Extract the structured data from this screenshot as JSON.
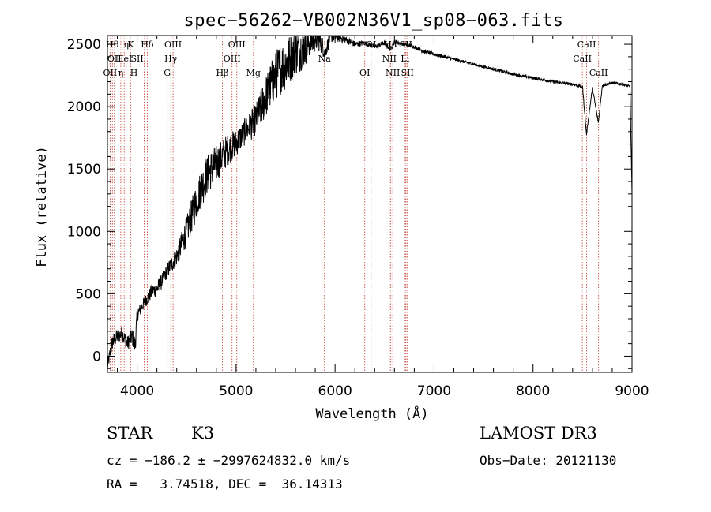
{
  "chart_data": {
    "type": "line",
    "title": "spec−56262−VB002N36V1_sp08−063.fits",
    "xlabel": "Wavelength (Å)",
    "ylabel": "Flux (relative)",
    "xlim": [
      3700,
      9000
    ],
    "ylim": [
      -130,
      2570
    ],
    "x_ticks": [
      4000,
      5000,
      6000,
      7000,
      8000,
      9000
    ],
    "x_tick_labels": [
      "4000",
      "5000",
      "6000",
      "7000",
      "8000",
      "9000"
    ],
    "y_ticks": [
      0,
      500,
      1000,
      1500,
      2000,
      2500
    ],
    "y_tick_labels": [
      "0",
      "500",
      "1000",
      "1500",
      "2000",
      "2500"
    ],
    "spectrum": {
      "x": [
        3700,
        3750,
        3800,
        3850,
        3900,
        3950,
        3980,
        4000,
        4050,
        4100,
        4150,
        4200,
        4250,
        4300,
        4350,
        4400,
        4450,
        4500,
        4550,
        4600,
        4650,
        4700,
        4750,
        4800,
        4850,
        4900,
        4950,
        5000,
        5050,
        5100,
        5150,
        5200,
        5250,
        5300,
        5350,
        5400,
        5450,
        5500,
        5550,
        5600,
        5650,
        5700,
        5750,
        5800,
        5850,
        5900,
        5950,
        6000,
        6100,
        6200,
        6300,
        6400,
        6500,
        6560,
        6600,
        6700,
        6800,
        6900,
        7000,
        7200,
        7400,
        7600,
        7800,
        8000,
        8200,
        8400,
        8500,
        8540,
        8600,
        8660,
        8700,
        8800,
        8900,
        8980,
        9000
      ],
      "flux": [
        -80,
        110,
        160,
        180,
        100,
        160,
        80,
        330,
        400,
        460,
        520,
        540,
        600,
        680,
        740,
        800,
        900,
        1000,
        1120,
        1250,
        1350,
        1440,
        1500,
        1540,
        1590,
        1640,
        1680,
        1710,
        1760,
        1810,
        1850,
        1900,
        1980,
        2080,
        2170,
        2250,
        2310,
        2340,
        2390,
        2430,
        2460,
        2490,
        2520,
        2550,
        2530,
        2430,
        2560,
        2560,
        2540,
        2500,
        2510,
        2480,
        2510,
        2460,
        2520,
        2500,
        2480,
        2440,
        2420,
        2380,
        2340,
        2300,
        2260,
        2230,
        2200,
        2180,
        2160,
        1780,
        2150,
        1870,
        2170,
        2190,
        2180,
        2160,
        1280
      ],
      "noise": [
        50,
        60,
        60,
        60,
        60,
        70,
        80,
        60,
        50,
        50,
        60,
        60,
        60,
        60,
        70,
        80,
        100,
        120,
        140,
        150,
        160,
        160,
        160,
        150,
        140,
        130,
        120,
        110,
        110,
        110,
        120,
        130,
        150,
        170,
        190,
        200,
        210,
        210,
        200,
        190,
        180,
        160,
        140,
        110,
        90,
        60,
        50,
        40,
        30,
        25,
        20,
        20,
        20,
        20,
        20,
        15,
        15,
        15,
        15,
        12,
        12,
        12,
        12,
        12,
        12,
        12,
        12,
        12,
        12,
        12,
        12,
        12,
        12,
        12,
        12
      ]
    },
    "lines": [
      {
        "x": 3727,
        "label": "OII",
        "row": 3
      },
      {
        "x": 3750,
        "label": "Hθ",
        "row": 1
      },
      {
        "x": 3770,
        "label": "OII",
        "row": 2
      },
      {
        "x": 3835,
        "label": "η",
        "row": 3
      },
      {
        "x": 3869,
        "label": "HeI",
        "row": 2
      },
      {
        "x": 3889,
        "label": "η",
        "row": 1
      },
      {
        "x": 3934,
        "label": "K",
        "row": 1
      },
      {
        "x": 3968,
        "label": "H",
        "row": 3
      },
      {
        "x": 4000,
        "label": "SII",
        "row": 2
      },
      {
        "x": 4072,
        "label": "",
        "row": 0
      },
      {
        "x": 4102,
        "label": "Hδ",
        "row": 1
      },
      {
        "x": 4304,
        "label": "G",
        "row": 3
      },
      {
        "x": 4340,
        "label": "Hγ",
        "row": 2
      },
      {
        "x": 4363,
        "label": "OIII",
        "row": 1
      },
      {
        "x": 4861,
        "label": "Hβ",
        "row": 3
      },
      {
        "x": 4959,
        "label": "OIII",
        "row": 2
      },
      {
        "x": 5007,
        "label": "OIII",
        "row": 1
      },
      {
        "x": 5175,
        "label": "Mg",
        "row": 3
      },
      {
        "x": 5893,
        "label": "Na",
        "row": 2
      },
      {
        "x": 6300,
        "label": "OI",
        "row": 3
      },
      {
        "x": 6364,
        "label": "OI",
        "row": 1
      },
      {
        "x": 6548,
        "label": "NII",
        "row": 2
      },
      {
        "x": 6563,
        "label": "Hα",
        "row": 1
      },
      {
        "x": 6583,
        "label": "NII",
        "row": 3
      },
      {
        "x": 6716,
        "label": "SII",
        "row": 1
      },
      {
        "x": 6731,
        "label": "SII",
        "row": 3
      },
      {
        "x": 6708,
        "label": "Li",
        "row": 2
      },
      {
        "x": 8498,
        "label": "CaII",
        "row": 2
      },
      {
        "x": 8542,
        "label": "CaII",
        "row": 1
      },
      {
        "x": 8662,
        "label": "CaII",
        "row": 3
      }
    ]
  },
  "info": {
    "class": "STAR",
    "subclass": "K3",
    "survey": "LAMOST DR3",
    "cz": "cz = −186.2 ± −2997624832.0 km/s",
    "obs_date": "Obs−Date: 20121130",
    "radec": "RA =   3.74518, DEC =  36.14313"
  },
  "colors": {
    "axis": "#000000",
    "spectrum": "#000000",
    "line_marker": "#c0392b"
  }
}
